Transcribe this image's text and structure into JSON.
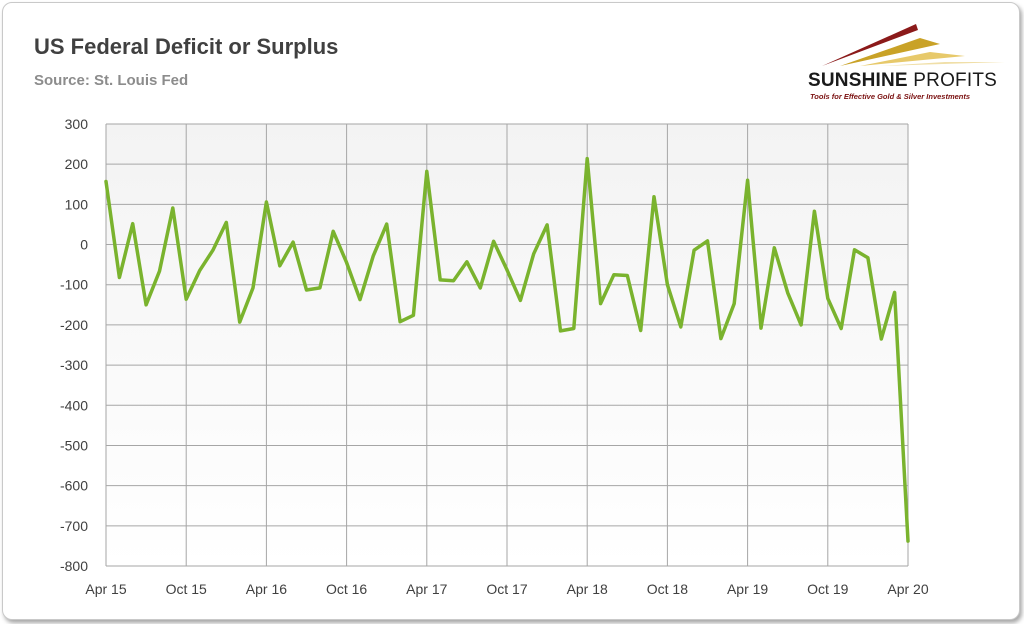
{
  "title": "US Federal Deficit or Surplus",
  "subtitle": "Source: St. Louis Fed",
  "logo": {
    "name_bold": "SUNSHINE",
    "name_rest": " PROFITS",
    "tagline": "Tools for Effective Gold & Silver Investments"
  },
  "colors": {
    "line": "#7ab32e",
    "grid": "#a6a6a6",
    "plot_bg_top": "#f3f3f3",
    "plot_bg_bottom": "#ffffff",
    "title": "#404040",
    "subtitle": "#8c8c8c"
  },
  "chart_data": {
    "type": "line",
    "title": "US Federal Deficit or Surplus",
    "subtitle": "Source: St. Louis Fed",
    "xlabel": "",
    "ylabel": "",
    "ylim": [
      -800,
      300
    ],
    "yticks": [
      "300",
      "200",
      "100",
      "0",
      "-100",
      "-200",
      "-300",
      "-400",
      "-500",
      "-600",
      "-700",
      "-800"
    ],
    "xtick_labels": [
      "Apr 15",
      "Oct 15",
      "Apr 16",
      "Oct 16",
      "Apr 17",
      "Oct 17",
      "Apr 18",
      "Oct 18",
      "Apr 19",
      "Oct 19",
      "Apr 20"
    ],
    "grid": true,
    "legend": "none",
    "x": [
      "Apr 15",
      "May 15",
      "Jun 15",
      "Jul 15",
      "Aug 15",
      "Sep 15",
      "Oct 15",
      "Nov 15",
      "Dec 15",
      "Jan 16",
      "Feb 16",
      "Mar 16",
      "Apr 16",
      "May 16",
      "Jun 16",
      "Jul 16",
      "Aug 16",
      "Sep 16",
      "Oct 16",
      "Nov 16",
      "Dec 16",
      "Jan 17",
      "Feb 17",
      "Mar 17",
      "Apr 17",
      "May 17",
      "Jun 17",
      "Jul 17",
      "Aug 17",
      "Sep 17",
      "Oct 17",
      "Nov 17",
      "Dec 17",
      "Jan 18",
      "Feb 18",
      "Mar 18",
      "Apr 18",
      "May 18",
      "Jun 18",
      "Jul 18",
      "Aug 18",
      "Sep 18",
      "Oct 18",
      "Nov 18",
      "Dec 18",
      "Jan 19",
      "Feb 19",
      "Mar 19",
      "Apr 19",
      "May 19",
      "Jun 19",
      "Jul 19",
      "Aug 19",
      "Sep 19",
      "Oct 19",
      "Nov 19",
      "Dec 19",
      "Jan 20",
      "Feb 20",
      "Mar 20",
      "Apr 20"
    ],
    "series": [
      {
        "values": [
          157,
          -82,
          52,
          -150,
          -66,
          91,
          -136,
          -65,
          -14,
          55,
          -193,
          -108,
          106,
          -53,
          6,
          -113,
          -108,
          33,
          -45,
          -137,
          -28,
          51,
          -192,
          -176,
          182,
          -88,
          -90,
          -43,
          -108,
          8,
          -63,
          -139,
          -23,
          49,
          -215,
          -209,
          214,
          -147,
          -75,
          -77,
          -214,
          119,
          -100,
          -205,
          -14,
          9,
          -234,
          -147,
          160,
          -208,
          -8,
          -120,
          -200,
          83,
          -134,
          -209,
          -13,
          -33,
          -235,
          -119,
          -738
        ]
      }
    ]
  }
}
